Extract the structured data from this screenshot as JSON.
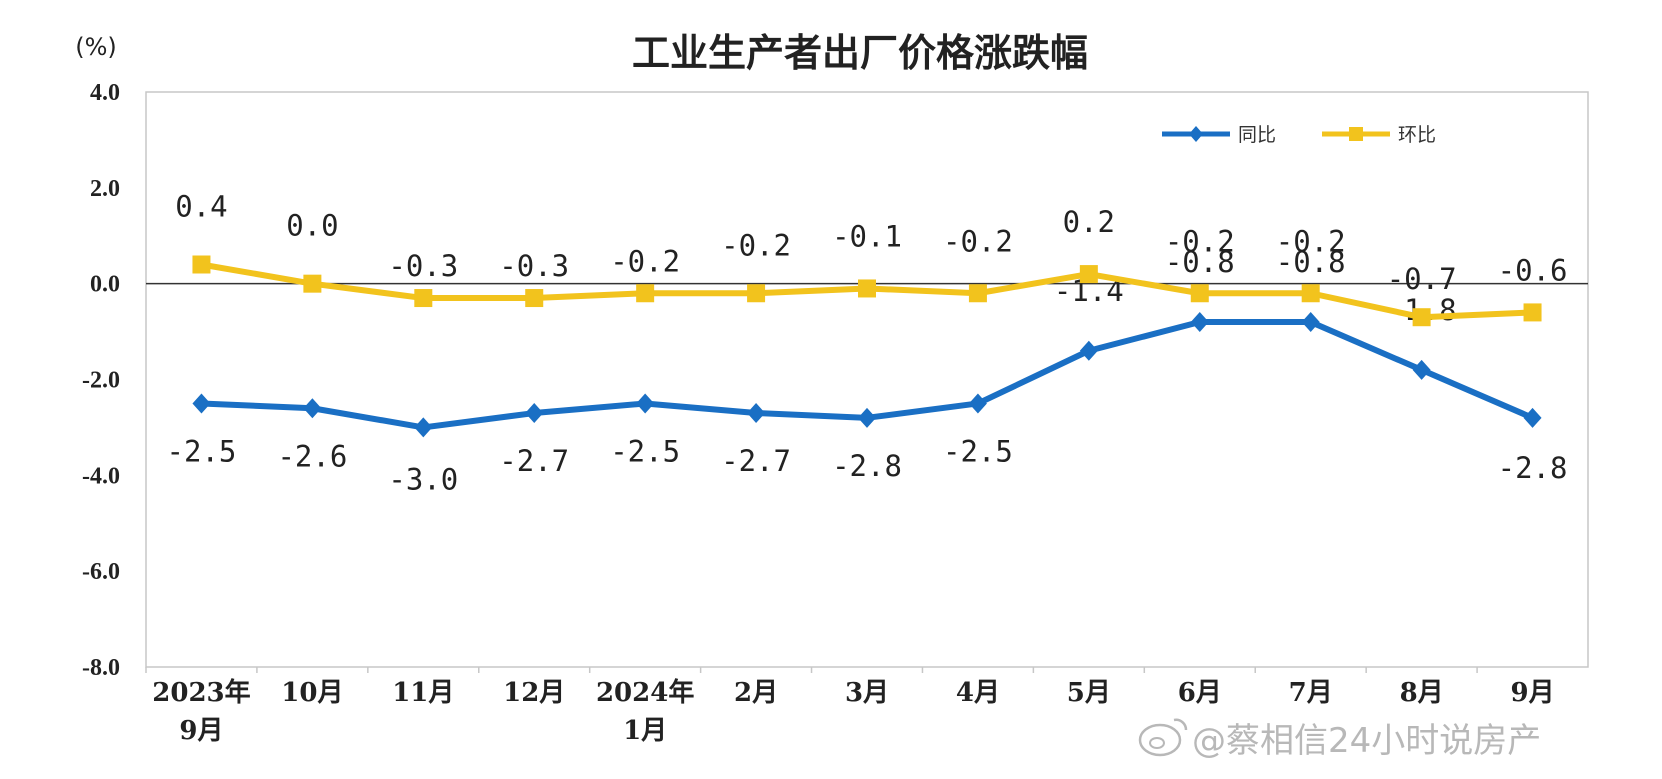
{
  "chart_data": {
    "type": "line",
    "title": "工业生产者出厂价格涨跌幅",
    "unit": "(%)",
    "ylim": [
      -8.0,
      4.0
    ],
    "yticks": [
      4.0,
      2.0,
      0.0,
      -2.0,
      -4.0,
      -6.0,
      -8.0
    ],
    "ytick_labels": [
      "4.0",
      "2.0",
      "0.0",
      "-2.0",
      "-4.0",
      "-6.0",
      "-8.0"
    ],
    "categories": [
      [
        "2023年",
        "9月"
      ],
      [
        "10月"
      ],
      [
        "11月"
      ],
      [
        "12月"
      ],
      [
        "2024年",
        "1月"
      ],
      [
        "2月"
      ],
      [
        "3月"
      ],
      [
        "4月"
      ],
      [
        "5月"
      ],
      [
        "6月"
      ],
      [
        "7月"
      ],
      [
        "8月"
      ],
      [
        "9月"
      ]
    ],
    "grid": false,
    "legend_position": "top-right",
    "series": [
      {
        "name": "同比",
        "color": "#1a6fc4",
        "marker": "diamond",
        "values": [
          -2.5,
          -2.6,
          -3.0,
          -2.7,
          -2.5,
          -2.7,
          -2.8,
          -2.5,
          -1.4,
          -0.8,
          -0.8,
          -1.8,
          -2.8
        ],
        "labels": [
          "-2.5",
          "-2.6",
          "-3.0",
          "-2.7",
          "-2.5",
          "-2.7",
          "-2.8",
          "-2.5",
          "-1.4",
          "-0.8",
          "-0.8",
          "-1.8",
          "-2.8"
        ]
      },
      {
        "name": "环比",
        "color": "#f2c31d",
        "marker": "square",
        "values": [
          0.4,
          0.0,
          -0.3,
          -0.3,
          -0.2,
          -0.2,
          -0.1,
          -0.2,
          0.2,
          -0.2,
          -0.2,
          -0.7,
          -0.6
        ],
        "labels": [
          "0.4",
          "0.0",
          "-0.3",
          "-0.3",
          "-0.2",
          "-0.2",
          "-0.1",
          "-0.2",
          "0.2",
          "-0.2",
          "-0.2",
          "-0.7",
          "-0.6"
        ]
      }
    ]
  },
  "watermark": {
    "text": "@蔡相信24小时说房产",
    "icon": "weibo-icon"
  }
}
